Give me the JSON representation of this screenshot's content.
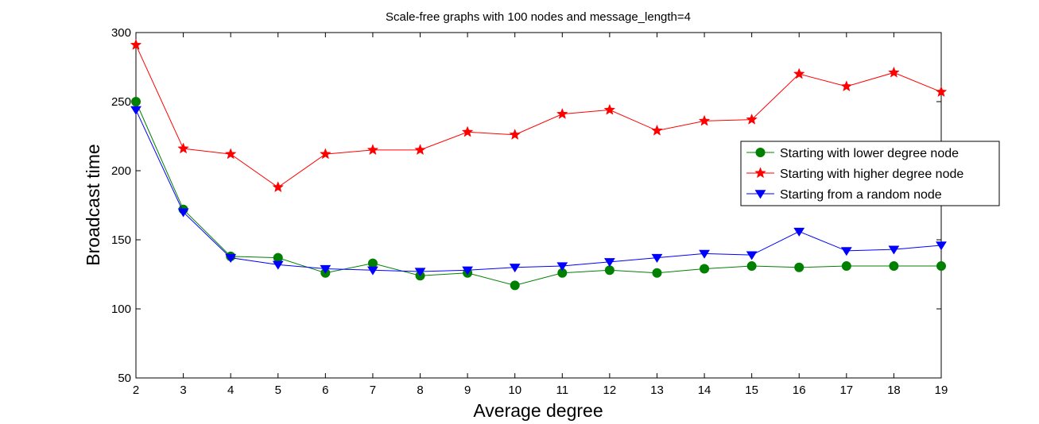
{
  "chart_data": {
    "type": "line",
    "title": "Scale-free graphs with 100 nodes and message_length=4",
    "xlabel": "Average degree",
    "ylabel": "Broadcast time",
    "xlim": [
      2,
      19
    ],
    "ylim": [
      50,
      300
    ],
    "xticks": [
      2,
      3,
      4,
      5,
      6,
      7,
      8,
      9,
      10,
      11,
      12,
      13,
      14,
      15,
      16,
      17,
      18,
      19
    ],
    "yticks": [
      50,
      100,
      150,
      200,
      250,
      300
    ],
    "grid": false,
    "legend_position": "right",
    "x": [
      2,
      3,
      4,
      5,
      6,
      7,
      8,
      9,
      10,
      11,
      12,
      13,
      14,
      15,
      16,
      17,
      18,
      19
    ],
    "series": [
      {
        "name": "Starting with lower degree node",
        "color": "#008000",
        "marker": "circle",
        "values": [
          250,
          172,
          138,
          137,
          126,
          133,
          124,
          126,
          117,
          126,
          128,
          126,
          129,
          131,
          130,
          131,
          131,
          131
        ]
      },
      {
        "name": "Starting with higher degree node",
        "color": "#ff0000",
        "marker": "star",
        "values": [
          291,
          216,
          212,
          188,
          212,
          215,
          215,
          228,
          226,
          241,
          244,
          229,
          236,
          237,
          270,
          261,
          271,
          257
        ]
      },
      {
        "name": "Starting from a random node",
        "color": "#0000ff",
        "marker": "triangle-down",
        "values": [
          244,
          170,
          137,
          132,
          129,
          128,
          127,
          128,
          130,
          131,
          134,
          137,
          140,
          139,
          156,
          142,
          143,
          146
        ]
      }
    ]
  }
}
